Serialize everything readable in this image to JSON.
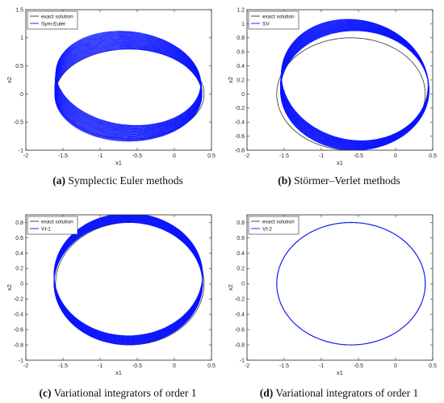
{
  "colors": {
    "exact": "#333333",
    "numeric": "#0a14ff",
    "axis": "#262626"
  },
  "chart_data": [
    {
      "type": "line",
      "panel": "a",
      "caption_label": "(a)",
      "caption_text": " Symplectic Euler methods",
      "xlabel": "x1",
      "ylabel": "x2",
      "xlim": [
        -2,
        0.5
      ],
      "ylim": [
        -1,
        1.5
      ],
      "xticks": [
        -2,
        -1.5,
        -1,
        -0.5,
        0,
        0.5
      ],
      "yticks": [
        -1,
        -0.5,
        0,
        0.5,
        1,
        1.5
      ],
      "xtick_labels": [
        "-2",
        "-1.5",
        "-1",
        "-0.5",
        "0",
        "0.5"
      ],
      "ytick_labels": [
        "-1",
        "-0.5",
        "0",
        "0.5",
        "1",
        "1.5"
      ],
      "legend_position": "top-left",
      "series": [
        {
          "name": "exact solution",
          "kind": "ellipse",
          "cx": -0.6,
          "cy": 0.0,
          "rx": 1.0,
          "ry": 0.8,
          "tilt": 0.0
        },
        {
          "name": "Sym-Euler",
          "kind": "band",
          "cx": -0.62,
          "cy": 0.28,
          "rx": 0.99,
          "ry": 0.82,
          "tilt": -0.32,
          "band_shift": [
            0.0,
            -0.3
          ],
          "band_direction": [
            -0.55,
            0.85
          ]
        }
      ]
    },
    {
      "type": "line",
      "panel": "b",
      "caption_label": "(b)",
      "caption_text": " Störmer–Verlet methods",
      "xlabel": "x1",
      "ylabel": "x2",
      "xlim": [
        -2,
        0.5
      ],
      "ylim": [
        -0.8,
        1.2
      ],
      "xticks": [
        -2,
        -1.5,
        -1,
        -0.5,
        0,
        0.5
      ],
      "yticks": [
        -0.8,
        -0.6,
        -0.4,
        -0.2,
        0,
        0.2,
        0.4,
        0.6,
        0.8,
        1,
        1.2
      ],
      "xtick_labels": [
        "-2",
        "-1.5",
        "-1",
        "-0.5",
        "0",
        "0.5"
      ],
      "ytick_labels": [
        "-0.8",
        "-0.6",
        "-0.4",
        "-0.2",
        "0",
        "0.2",
        "0.4",
        "0.6",
        "0.8",
        "1",
        "1.2"
      ],
      "legend_position": "top-left",
      "series": [
        {
          "name": "exact solution",
          "kind": "ellipse",
          "cx": -0.6,
          "cy": 0.0,
          "rx": 1.0,
          "ry": 0.8,
          "tilt": 0.0
        },
        {
          "name": "SV",
          "kind": "band",
          "cx": -0.55,
          "cy": 0.2,
          "rx": 1.0,
          "ry": 0.85,
          "tilt": -0.3,
          "band_shift": [
            0.0,
            -0.15
          ],
          "band_direction": [
            -0.35,
            0.95
          ]
        }
      ]
    },
    {
      "type": "line",
      "panel": "c",
      "caption_label": "(c)",
      "caption_text": " Variational integrators of order 1",
      "xlabel": "x1",
      "ylabel": "x2",
      "xlim": [
        -2,
        0.5
      ],
      "ylim": [
        -1,
        0.9
      ],
      "xticks": [
        -2,
        -1.5,
        -1,
        -0.5,
        0,
        0.5
      ],
      "yticks": [
        -1,
        -0.8,
        -0.6,
        -0.4,
        -0.2,
        0,
        0.2,
        0.4,
        0.6,
        0.8
      ],
      "xtick_labels": [
        "-2",
        "-1.5",
        "-1",
        "-0.5",
        "0",
        "0.5"
      ],
      "ytick_labels": [
        "-1",
        "-0.8",
        "-0.6",
        "-0.4",
        "-0.2",
        "0",
        "0.2",
        "0.4",
        "0.6",
        "0.8"
      ],
      "legend_position": "top-left",
      "series": [
        {
          "name": "exact solution",
          "kind": "ellipse",
          "cx": -0.6,
          "cy": 0.0,
          "rx": 1.0,
          "ry": 0.8,
          "tilt": 0.0
        },
        {
          "name": "VI-1",
          "kind": "band",
          "cx": -0.62,
          "cy": 0.0,
          "rx": 1.0,
          "ry": 0.8,
          "tilt": 0.0,
          "band_shift": [
            0.0,
            0.12
          ],
          "band_direction": [
            0.35,
            0.94
          ]
        }
      ]
    },
    {
      "type": "line",
      "panel": "d",
      "caption_label": "(d)",
      "caption_text": " Variational integrators of order 1",
      "xlabel": "x1",
      "ylabel": "x2",
      "xlim": [
        -2,
        0.5
      ],
      "ylim": [
        -1,
        0.9
      ],
      "xticks": [
        -2,
        -1.5,
        -1,
        -0.5,
        0,
        0.5
      ],
      "yticks": [
        -1,
        -0.8,
        -0.6,
        -0.4,
        -0.2,
        0,
        0.2,
        0.4,
        0.6,
        0.8
      ],
      "xtick_labels": [
        "-2",
        "-1.5",
        "-1",
        "-0.5",
        "0",
        "0.5"
      ],
      "ytick_labels": [
        "-1",
        "-0.8",
        "-0.6",
        "-0.4",
        "-0.2",
        "0",
        "0.2",
        "0.4",
        "0.6",
        "0.8"
      ],
      "legend_position": "top-left",
      "series": [
        {
          "name": "exact solution",
          "kind": "ellipse",
          "cx": -0.6,
          "cy": 0.0,
          "rx": 1.0,
          "ry": 0.8,
          "tilt": 0.0
        },
        {
          "name": "VI-2",
          "kind": "ellipse",
          "cx": -0.6,
          "cy": 0.0,
          "rx": 1.0,
          "ry": 0.8,
          "tilt": 0.0
        }
      ]
    }
  ]
}
